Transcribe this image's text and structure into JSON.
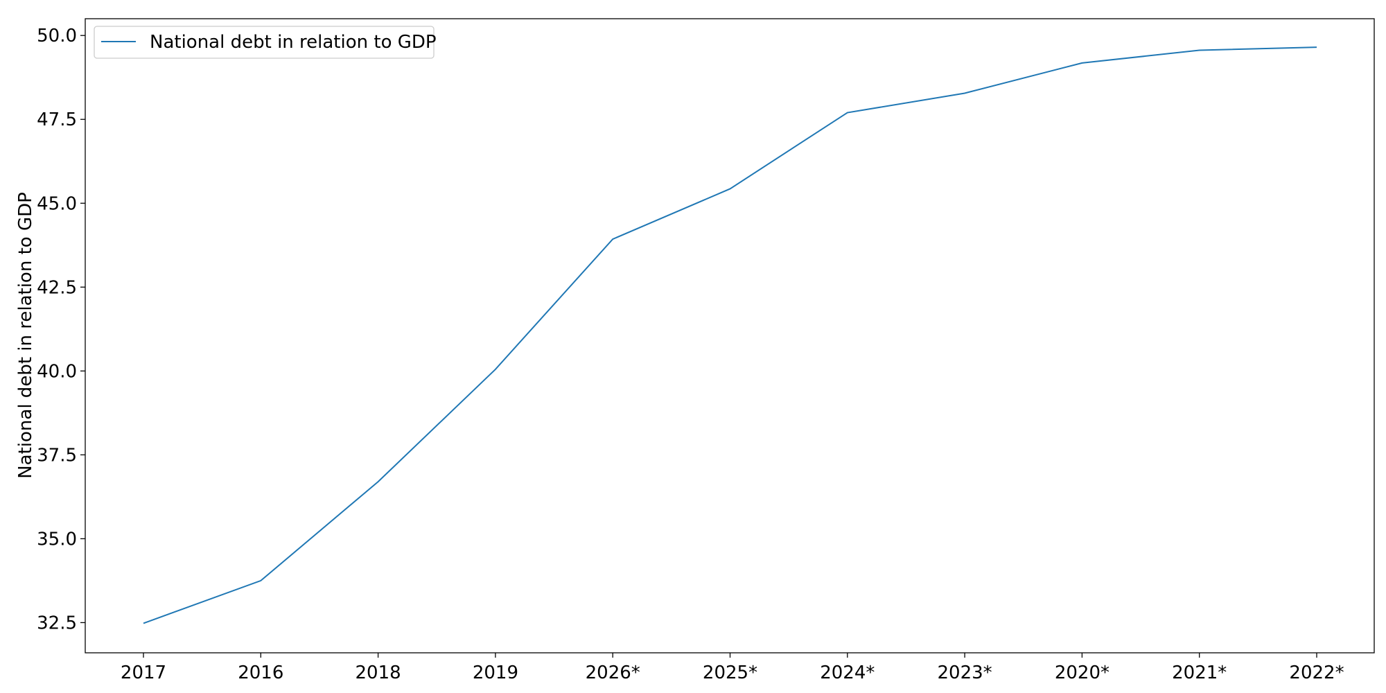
{
  "chart_data": {
    "type": "line",
    "title": "",
    "xlabel": "",
    "ylabel": "National debt in relation to GDP",
    "categories": [
      "2017",
      "2016",
      "2018",
      "2019",
      "2026*",
      "2025*",
      "2024*",
      "2023*",
      "2020*",
      "2021*",
      "2022*"
    ],
    "series": [
      {
        "name": "National debt in relation to GDP",
        "values": [
          32.48,
          33.75,
          36.7,
          40.05,
          43.93,
          45.43,
          47.7,
          48.28,
          49.18,
          49.56,
          49.65
        ]
      }
    ],
    "ylim": [
      31.6,
      50.5
    ],
    "yticks": [
      "32.5",
      "35.0",
      "37.5",
      "40.0",
      "42.5",
      "45.0",
      "47.5",
      "50.0"
    ],
    "grid": false,
    "legend_position": "upper-left",
    "colors": {
      "series": "#1f77b4",
      "axes": "#000000",
      "legend_border": "#cccccc"
    }
  }
}
